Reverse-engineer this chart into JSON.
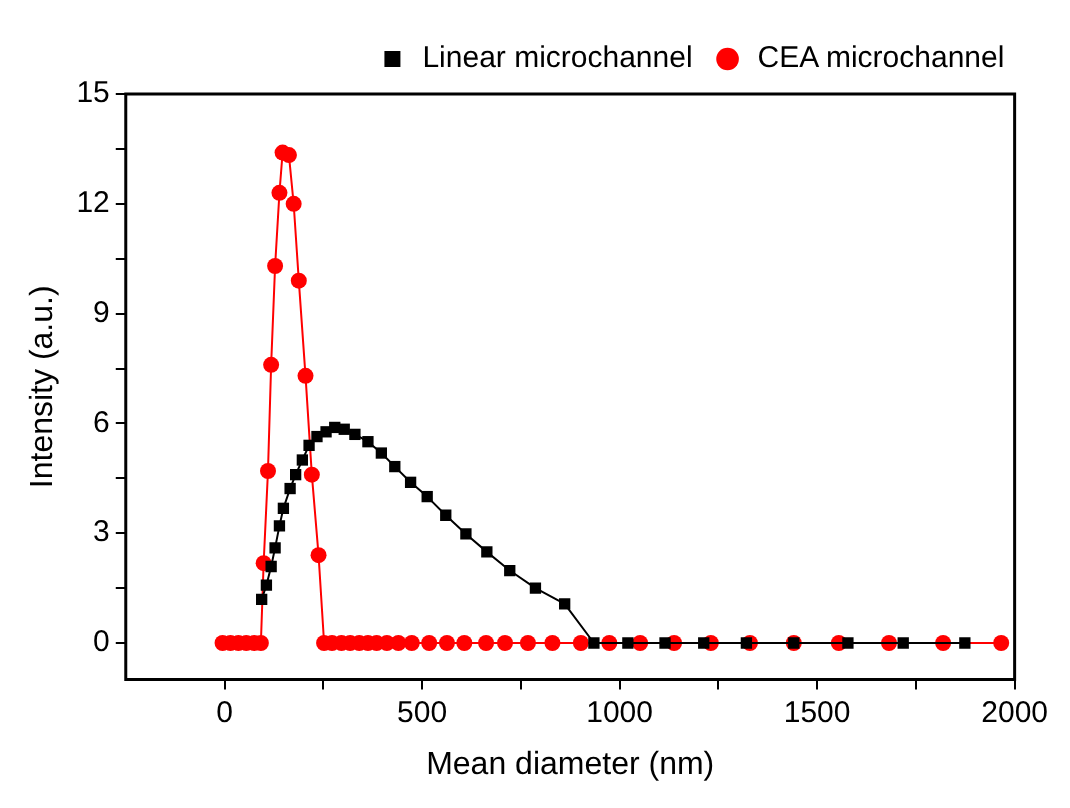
{
  "chart_data": {
    "type": "line",
    "xlabel": "Mean diameter (nm)",
    "ylabel": "Intensity (a.u.)",
    "xlim": [
      -250,
      2000
    ],
    "xticks": [
      0,
      {
        "value": 250,
        "label": null
      },
      500,
      {
        "value": 750,
        "label": null
      },
      1000,
      {
        "value": 1250,
        "label": null
      },
      1500,
      {
        "value": 1750,
        "label": null
      },
      2000
    ],
    "ylim": [
      -1,
      15
    ],
    "yticks": [
      0,
      {
        "value": 1.5,
        "label": null
      },
      3,
      {
        "value": 4.5,
        "label": null
      },
      6,
      {
        "value": 7.5,
        "label": null
      },
      9,
      {
        "value": 10.5,
        "label": null
      },
      12,
      {
        "value": 13.5,
        "label": null
      },
      15
    ],
    "grid": false,
    "legend": "top right",
    "line_style": "solid",
    "series": [
      {
        "name": "Linear microchannel",
        "color": "#000000",
        "marker": "square",
        "x": [
          94,
          106,
          118,
          128,
          139,
          149,
          166,
          180,
          197,
          214,
          234,
          257,
          279,
          303,
          330,
          363,
          397,
          431,
          471,
          513,
          560,
          611,
          664,
          722,
          787,
          861,
          935,
          1021,
          1115,
          1213,
          1321,
          1441,
          1578,
          1718,
          1874
        ],
        "values": [
          1.19,
          1.58,
          2.09,
          2.6,
          3.2,
          3.68,
          4.22,
          4.6,
          5.0,
          5.4,
          5.64,
          5.77,
          5.89,
          5.84,
          5.7,
          5.5,
          5.19,
          4.82,
          4.39,
          4.0,
          3.49,
          2.98,
          2.49,
          1.98,
          1.5,
          1.07,
          0,
          0,
          0,
          0,
          0,
          0,
          0,
          0,
          0
        ]
      },
      {
        "name": "CEA microchannel",
        "color": "#ff0000",
        "marker": "circle",
        "x": [
          -5,
          15,
          35,
          55,
          75,
          92,
          99,
          110,
          118,
          128,
          139,
          147,
          163,
          175,
          188,
          205,
          221,
          238,
          252,
          272,
          296,
          318,
          341,
          363,
          385,
          411,
          440,
          474,
          518,
          563,
          607,
          662,
          710,
          768,
          830,
          902,
          974,
          1052,
          1138,
          1231,
          1330,
          1441,
          1555,
          1682,
          1819,
          1966
        ],
        "values": [
          0,
          0,
          0,
          0,
          0,
          0,
          2.18,
          4.7,
          7.6,
          10.3,
          12.3,
          13.4,
          13.33,
          12.0,
          9.9,
          7.3,
          4.6,
          2.4,
          0,
          0,
          0,
          0,
          0,
          0,
          0,
          0,
          0,
          0,
          0,
          0,
          0,
          0,
          0,
          0,
          0,
          0,
          0,
          0,
          0,
          0,
          0,
          0,
          0,
          0,
          0,
          0
        ]
      }
    ]
  }
}
